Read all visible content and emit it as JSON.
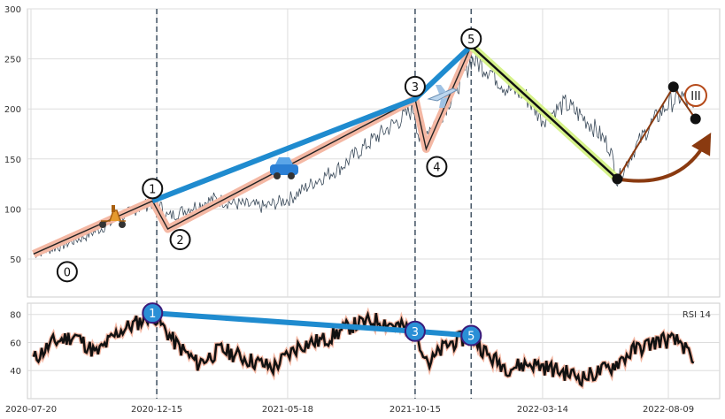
{
  "chart_data": [
    {
      "type": "line",
      "name": "price",
      "title": "",
      "xlabel": "",
      "ylabel": "",
      "ylim": [
        12,
        300
      ],
      "grid": true,
      "y_ticks": [
        50,
        100,
        150,
        200,
        250,
        300
      ],
      "x_ticks": [
        "2020-07-20",
        "2020-12-15",
        "2021-05-18",
        "2021-10-15",
        "2022-03-14",
        "2022-08-09"
      ],
      "series": [
        {
          "x": [
            "2020-07-23",
            "2020-08-20",
            "2020-09-20",
            "2020-10-20",
            "2020-11-20",
            "2020-12-15",
            "2020-12-28",
            "2021-01-20",
            "2021-02-20",
            "2021-03-20",
            "2021-04-20",
            "2021-05-20",
            "2021-06-20",
            "2021-07-20",
            "2021-08-20",
            "2021-09-20",
            "2021-10-14",
            "2021-10-20",
            "2021-11-15",
            "2021-12-10",
            "2021-12-20",
            "2022-01-10",
            "2022-02-01",
            "2022-02-20",
            "2022-03-14",
            "2022-04-10",
            "2022-05-10",
            "2022-06-01",
            "2022-06-10",
            "2022-06-30",
            "2022-07-20",
            "2022-08-09",
            "2022-08-25",
            "2022-09-09"
          ],
          "y": [
            55,
            62,
            72,
            85,
            100,
            108,
            92,
            100,
            110,
            105,
            102,
            110,
            128,
            142,
            165,
            185,
            200,
            170,
            195,
            232,
            250,
            240,
            220,
            215,
            190,
            205,
            185,
            162,
            128,
            160,
            185,
            205,
            213,
            195
          ]
        }
      ],
      "wave_points": [
        {
          "label": "0",
          "date": "2020-07-23",
          "value": 55
        },
        {
          "label": "1",
          "date": "2020-12-10",
          "value": 108
        },
        {
          "label": "2",
          "date": "2020-12-28",
          "value": 80
        },
        {
          "label": "3",
          "date": "2021-10-15",
          "value": 210
        },
        {
          "label": "4",
          "date": "2021-10-28",
          "value": 160
        },
        {
          "label": "5",
          "date": "2021-12-20",
          "value": 263
        },
        {
          "label": "",
          "date": "2022-06-10",
          "value": 130
        },
        {
          "label": "",
          "date": "2022-08-15",
          "value": 222
        },
        {
          "label": "",
          "date": "2022-09-10",
          "value": 190
        }
      ],
      "wave_marker": "III",
      "vertical_lines": [
        "2020-12-15",
        "2021-10-15",
        "2021-12-20"
      ],
      "colors": {
        "price": "#3a4a5a",
        "trend": "#1f8bcf",
        "wave": "#f4b8a4",
        "wave_line": "#222222",
        "correction": "#d6f28a",
        "projection": "#8a3a10",
        "grid": "#dddddd"
      }
    },
    {
      "type": "line",
      "name": "rsi",
      "title": "",
      "ylim": [
        20,
        88
      ],
      "grid": true,
      "y_ticks": [
        40,
        60,
        80
      ],
      "legend": "RSI 14",
      "legend_position": "top-right",
      "series": [
        {
          "x": [
            "2020-07-23",
            "2020-08-15",
            "2020-09-10",
            "2020-10-05",
            "2020-11-01",
            "2020-11-25",
            "2020-12-10",
            "2021-01-05",
            "2021-02-01",
            "2021-03-01",
            "2021-04-01",
            "2021-05-01",
            "2021-06-01",
            "2021-07-01",
            "2021-08-01",
            "2021-09-01",
            "2021-10-15",
            "2021-11-01",
            "2021-11-20",
            "2021-12-20",
            "2022-01-10",
            "2022-02-01",
            "2022-03-01",
            "2022-04-01",
            "2022-05-01",
            "2022-06-01",
            "2022-07-01",
            "2022-08-01",
            "2022-08-25",
            "2022-09-10"
          ],
          "y": [
            48,
            60,
            65,
            52,
            68,
            75,
            81,
            60,
            45,
            55,
            48,
            42,
            58,
            62,
            72,
            76,
            68,
            45,
            58,
            65,
            50,
            42,
            45,
            40,
            35,
            42,
            55,
            62,
            60,
            40
          ]
        }
      ],
      "divergence_points": [
        {
          "label": "1",
          "date": "2020-12-10",
          "value": 81
        },
        {
          "label": "3",
          "date": "2021-10-15",
          "value": 68
        },
        {
          "label": "5",
          "date": "2021-12-20",
          "value": 65
        }
      ]
    }
  ]
}
